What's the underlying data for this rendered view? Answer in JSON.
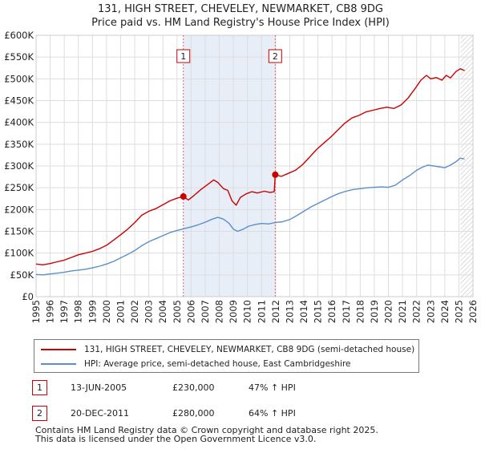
{
  "header": {
    "title": "131, HIGH STREET, CHEVELEY, NEWMARKET, CB8 9DG",
    "subtitle": "Price paid vs. HM Land Registry's House Price Index (HPI)"
  },
  "colors": {
    "property": "#cc0000",
    "hpi": "#5b8fc9",
    "shade": "#e8eef8",
    "grid": "#dddddd",
    "marker_line": "#e06666"
  },
  "chart_data": {
    "type": "line",
    "title": "131, HIGH STREET, CHEVELEY, NEWMARKET, CB8 9DG",
    "subtitle": "Price paid vs. HM Land Registry's House Price Index (HPI)",
    "xlabel": "",
    "ylabel": "",
    "xlim": [
      1995,
      2026
    ],
    "ylim": [
      0,
      600000
    ],
    "grid": true,
    "x_ticks": [
      1995,
      1996,
      1997,
      1998,
      1999,
      2000,
      2001,
      2002,
      2003,
      2004,
      2005,
      2006,
      2007,
      2008,
      2009,
      2010,
      2011,
      2012,
      2013,
      2014,
      2015,
      2016,
      2017,
      2018,
      2019,
      2020,
      2021,
      2022,
      2023,
      2024,
      2025,
      2026
    ],
    "y_ticks": [
      {
        "value": 0,
        "label": "£0"
      },
      {
        "value": 50000,
        "label": "£50K"
      },
      {
        "value": 100000,
        "label": "£100K"
      },
      {
        "value": 150000,
        "label": "£150K"
      },
      {
        "value": 200000,
        "label": "£200K"
      },
      {
        "value": 250000,
        "label": "£250K"
      },
      {
        "value": 300000,
        "label": "£300K"
      },
      {
        "value": 350000,
        "label": "£350K"
      },
      {
        "value": 400000,
        "label": "£400K"
      },
      {
        "value": 450000,
        "label": "£450K"
      },
      {
        "value": 500000,
        "label": "£500K"
      },
      {
        "value": 550000,
        "label": "£550K"
      },
      {
        "value": 600000,
        "label": "£600K"
      }
    ],
    "shaded_range": [
      2005.45,
      2011.97
    ],
    "forecast_start": 2025.1,
    "series": [
      {
        "name": "131, HIGH STREET, CHEVELEY, NEWMARKET, CB8 9DG (semi-detached house)",
        "color": "#cc0000",
        "x": [
          1995.0,
          1995.5,
          1996.0,
          1996.5,
          1997.0,
          1997.5,
          1998.0,
          1998.5,
          1999.0,
          1999.5,
          2000.0,
          2000.5,
          2001.0,
          2001.5,
          2002.0,
          2002.5,
          2003.0,
          2003.5,
          2004.0,
          2004.5,
          2005.0,
          2005.45,
          2005.8,
          2006.2,
          2006.7,
          2007.2,
          2007.6,
          2007.9,
          2008.3,
          2008.6,
          2008.9,
          2009.2,
          2009.5,
          2009.9,
          2010.3,
          2010.7,
          2011.2,
          2011.6,
          2011.9,
          2011.97,
          2012.4,
          2012.9,
          2013.4,
          2013.9,
          2014.4,
          2014.9,
          2015.4,
          2015.9,
          2016.4,
          2016.9,
          2017.4,
          2017.9,
          2018.4,
          2018.9,
          2019.4,
          2019.9,
          2020.4,
          2020.9,
          2021.4,
          2021.9,
          2022.3,
          2022.7,
          2023.0,
          2023.4,
          2023.8,
          2024.1,
          2024.4,
          2024.8,
          2025.1,
          2025.4
        ],
        "values": [
          75000,
          73000,
          76000,
          80000,
          84000,
          90000,
          96000,
          100000,
          104000,
          110000,
          118000,
          130000,
          142000,
          155000,
          170000,
          187000,
          196000,
          202000,
          211000,
          220000,
          226000,
          230000,
          222000,
          232000,
          246000,
          258000,
          268000,
          262000,
          248000,
          244000,
          220000,
          210000,
          228000,
          236000,
          241000,
          238000,
          242000,
          239000,
          241000,
          280000,
          276000,
          283000,
          290000,
          303000,
          320000,
          338000,
          352000,
          366000,
          382000,
          398000,
          410000,
          416000,
          424000,
          428000,
          432000,
          435000,
          432000,
          440000,
          456000,
          478000,
          497000,
          508000,
          500000,
          503000,
          497000,
          508000,
          502000,
          517000,
          523000,
          519000
        ]
      },
      {
        "name": "HPI: Average price, semi-detached house, East Cambridgeshire",
        "color": "#5b8fc9",
        "x": [
          1995.0,
          1995.5,
          1996.0,
          1996.5,
          1997.0,
          1997.5,
          1998.0,
          1998.5,
          1999.0,
          1999.5,
          2000.0,
          2000.5,
          2001.0,
          2001.5,
          2002.0,
          2002.5,
          2003.0,
          2003.5,
          2004.0,
          2004.5,
          2005.0,
          2005.5,
          2006.0,
          2006.5,
          2007.0,
          2007.5,
          2007.9,
          2008.3,
          2008.7,
          2009.0,
          2009.3,
          2009.7,
          2010.1,
          2010.6,
          2011.0,
          2011.5,
          2011.97,
          2012.5,
          2013.0,
          2013.5,
          2014.0,
          2014.5,
          2015.0,
          2015.5,
          2016.0,
          2016.5,
          2017.0,
          2017.5,
          2018.0,
          2018.5,
          2019.0,
          2019.5,
          2020.0,
          2020.5,
          2021.0,
          2021.5,
          2022.0,
          2022.4,
          2022.8,
          2023.2,
          2023.6,
          2024.0,
          2024.4,
          2024.8,
          2025.1,
          2025.4
        ],
        "values": [
          51000,
          50000,
          52000,
          54000,
          56000,
          59000,
          61000,
          63000,
          66000,
          70000,
          75000,
          81000,
          89000,
          97000,
          106000,
          117000,
          126000,
          133000,
          140000,
          147000,
          152000,
          156000,
          160000,
          165000,
          171000,
          178000,
          182000,
          178000,
          168000,
          155000,
          150000,
          155000,
          162000,
          166000,
          168000,
          167000,
          170000,
          172000,
          177000,
          186000,
          196000,
          206000,
          214000,
          222000,
          230000,
          237000,
          242000,
          246000,
          248000,
          250000,
          251000,
          252000,
          251000,
          256000,
          268000,
          278000,
          290000,
          297000,
          302000,
          300000,
          298000,
          296000,
          302000,
          310000,
          318000,
          316000
        ]
      }
    ],
    "annotations": [
      {
        "label": "1",
        "x": 2005.45,
        "y": 230000
      },
      {
        "label": "2",
        "x": 2011.97,
        "y": 280000
      }
    ]
  },
  "legend": {
    "property_label": "131, HIGH STREET, CHEVELEY, NEWMARKET, CB8 9DG (semi-detached house)",
    "hpi_label": "HPI: Average price, semi-detached house, East Cambridgeshire"
  },
  "transactions": [
    {
      "num": "1",
      "date": "13-JUN-2005",
      "price": "£230,000",
      "delta": "47% ↑ HPI"
    },
    {
      "num": "2",
      "date": "20-DEC-2011",
      "price": "£280,000",
      "delta": "64% ↑ HPI"
    }
  ],
  "footer": {
    "line1": "Contains HM Land Registry data © Crown copyright and database right 2025.",
    "line2": "This data is licensed under the Open Government Licence v3.0."
  }
}
